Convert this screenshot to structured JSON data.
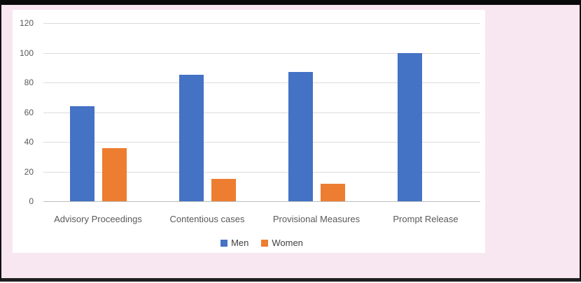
{
  "figure": {
    "background_color": "#f8e6f1",
    "frame_color": "#0a0a0a",
    "panel_color": "#ffffff"
  },
  "chart_data": {
    "type": "bar",
    "title": "",
    "xlabel": "",
    "ylabel": "",
    "categories": [
      "Advisory Proceedings",
      "Contentious cases",
      "Provisional Measures",
      "Prompt Release"
    ],
    "series": [
      {
        "name": "Men",
        "color": "#4472c4",
        "values": [
          64,
          85,
          87,
          100
        ]
      },
      {
        "name": "Women",
        "color": "#ed7d31",
        "values": [
          36,
          15,
          12,
          0
        ]
      }
    ],
    "ylim": [
      0,
      120
    ],
    "yticks": [
      0,
      20,
      40,
      60,
      80,
      100,
      120
    ],
    "grid": true,
    "gridline_color": "#dcdcdc",
    "axis_text_color": "#595959",
    "legend_position": "bottom"
  }
}
